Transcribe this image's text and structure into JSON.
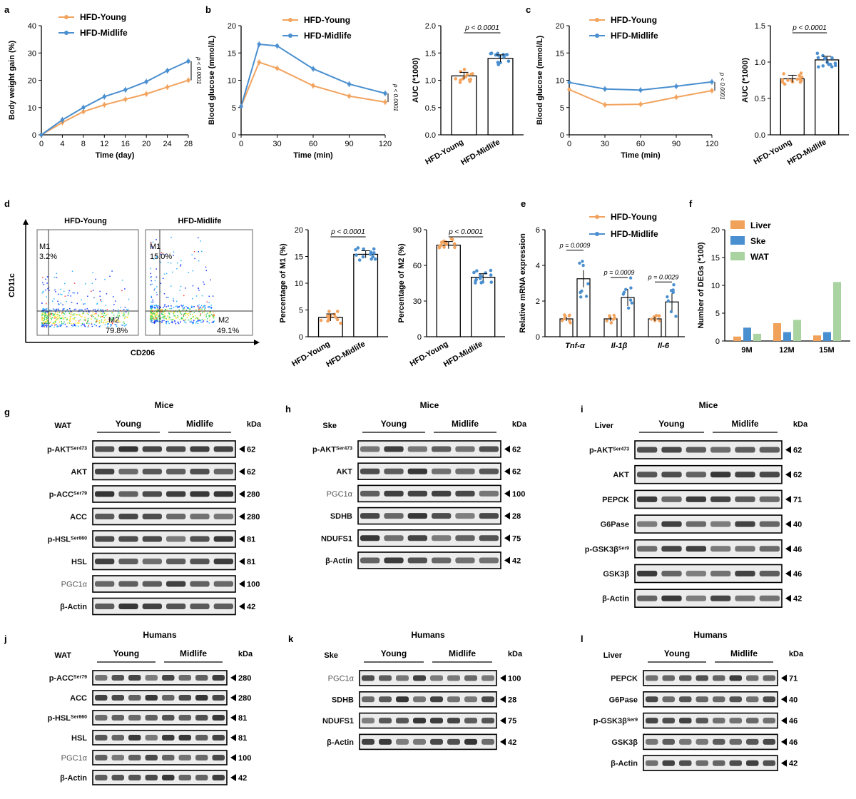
{
  "colors": {
    "young": "#f2a35e",
    "midlife": "#4a8fcf",
    "liver": "#f0a15a",
    "ske": "#4a8fcf",
    "wat": "#a9d4a1",
    "axis": "#000000"
  },
  "panel_letters": {
    "a": "a",
    "b": "b",
    "c": "c",
    "d": "d",
    "e": "e",
    "f": "f",
    "g": "g",
    "h": "h",
    "i": "i",
    "j": "j",
    "k": "k",
    "l": "l"
  },
  "legend": {
    "young": "HFD-Young",
    "midlife": "HFD-Midlife"
  },
  "pvals": {
    "p1": "p < 0.0001",
    "p0009": "p = 0.0009",
    "p0029": "p = 0.0029"
  },
  "panel_d": {
    "xlabel": "CD206",
    "ylabel": "CD11c",
    "young_title": "HFD-Young",
    "midlife_title": "HFD-Midlife",
    "young_m1": "M1",
    "young_m1_pct": "3.2%",
    "young_m2": "M2",
    "young_m2_pct": "79.8%",
    "mid_m1": "M1",
    "mid_m1_pct": "15.0%",
    "mid_m2": "M2",
    "mid_m2_pct": "49.1%"
  },
  "chart_data": [
    {
      "id": "a",
      "type": "line",
      "x": [
        0,
        4,
        8,
        12,
        16,
        20,
        24,
        28
      ],
      "series": [
        {
          "name": "HFD-Young",
          "values": [
            0,
            4.5,
            8.5,
            11,
            13,
            15,
            17.5,
            20
          ]
        },
        {
          "name": "HFD-Midlife",
          "values": [
            0,
            5.5,
            10,
            14,
            16.5,
            19.5,
            23.5,
            27
          ]
        }
      ],
      "xlabel": "Time (day)",
      "ylabel": "Body weight gain (%)",
      "xlim": [
        0,
        28
      ],
      "ylim": [
        0,
        40
      ],
      "xticks": [
        "0",
        "4",
        "8",
        "12",
        "16",
        "20",
        "24",
        "28"
      ],
      "yticks": [
        "0",
        "10",
        "20",
        "30",
        "40"
      ],
      "annotation": "p < 0.0001"
    },
    {
      "id": "b1",
      "type": "line",
      "x": [
        0,
        15,
        30,
        60,
        90,
        120
      ],
      "series": [
        {
          "name": "HFD-Young",
          "values": [
            5.2,
            13.3,
            12.2,
            9.0,
            7.1,
            6.0
          ]
        },
        {
          "name": "HFD-Midlife",
          "values": [
            5.2,
            16.6,
            16.3,
            12.1,
            9.3,
            7.6
          ]
        }
      ],
      "xlabel": "Time (min)",
      "ylabel": "Blood glucose (mmol/L)",
      "xlim": [
        0,
        120
      ],
      "ylim": [
        0,
        20
      ],
      "xticks": [
        "0",
        "30",
        "60",
        "90",
        "120"
      ],
      "yticks": [
        "0",
        "5",
        "10",
        "15",
        "20"
      ],
      "annotation": "p < 0.0001"
    },
    {
      "id": "b2",
      "type": "bar",
      "categories": [
        "HFD-Young",
        "HFD-Midlife"
      ],
      "values": [
        1.08,
        1.4
      ],
      "ylabel": "AUC (*1000)",
      "ylim": [
        0,
        2.0
      ],
      "yticks": [
        "0.0",
        "0.5",
        "1.0",
        "1.5",
        "2.0"
      ],
      "annotation": "p < 0.0001"
    },
    {
      "id": "c1",
      "type": "line",
      "x": [
        0,
        30,
        60,
        90,
        120
      ],
      "series": [
        {
          "name": "HFD-Young",
          "values": [
            8.3,
            5.5,
            5.6,
            6.9,
            8.1
          ]
        },
        {
          "name": "HFD-Midlife",
          "values": [
            9.6,
            8.4,
            8.2,
            8.9,
            9.7
          ]
        }
      ],
      "xlabel": "Time (min)",
      "ylabel": "Blood glucose (mmol/L)",
      "xlim": [
        0,
        120
      ],
      "ylim": [
        0,
        20
      ],
      "xticks": [
        "0",
        "30",
        "60",
        "90",
        "120"
      ],
      "yticks": [
        "0",
        "5",
        "10",
        "15",
        "20"
      ],
      "annotation": "p < 0.0001"
    },
    {
      "id": "c2",
      "type": "bar",
      "categories": [
        "HFD-Young",
        "HFD-Midlife"
      ],
      "values": [
        0.77,
        1.03
      ],
      "ylabel": "AUC (*1000)",
      "ylim": [
        0,
        1.5
      ],
      "yticks": [
        "0.0",
        "0.5",
        "1.0",
        "1.5"
      ],
      "annotation": "p < 0.0001"
    },
    {
      "id": "d1",
      "type": "bar",
      "categories": [
        "HFD-Young",
        "HFD-Midlife"
      ],
      "values": [
        3.6,
        15.4
      ],
      "ylabel": "Percentage of M1 (%)",
      "ylim": [
        0,
        20
      ],
      "yticks": [
        "0",
        "5",
        "10",
        "15",
        "20"
      ],
      "annotation": "p < 0.0001"
    },
    {
      "id": "d2",
      "type": "bar",
      "categories": [
        "HFD-Young",
        "HFD-Midlife"
      ],
      "values": [
        77,
        50
      ],
      "ylabel": "Percentage of M2 (%)",
      "ylim": [
        0,
        90
      ],
      "yticks": [
        "0",
        "30",
        "60",
        "90"
      ],
      "annotation": "p < 0.0001"
    },
    {
      "id": "e",
      "type": "bar",
      "categories": [
        "Tnf-α",
        "Il-1β",
        "Il-6"
      ],
      "series": [
        {
          "name": "HFD-Young",
          "values": [
            1.0,
            1.0,
            1.0
          ]
        },
        {
          "name": "HFD-Midlife",
          "values": [
            3.25,
            2.2,
            1.95
          ]
        }
      ],
      "ylabel": "Relative mRNA expression",
      "ylim": [
        0,
        6
      ],
      "yticks": [
        "0",
        "2",
        "4",
        "6"
      ],
      "annotations": [
        "p = 0.0009",
        "p = 0.0009",
        "p = 0.0029"
      ]
    },
    {
      "id": "f",
      "type": "bar",
      "categories": [
        "9M",
        "12M",
        "15M"
      ],
      "series": [
        {
          "name": "Liver",
          "values": [
            0.8,
            3.2,
            1.0
          ]
        },
        {
          "name": "Ske",
          "values": [
            2.4,
            1.6,
            1.6
          ]
        },
        {
          "name": "WAT",
          "values": [
            1.3,
            3.8,
            10.6
          ]
        }
      ],
      "ylabel": "Number of DEGs (*100)",
      "ylim": [
        0,
        20
      ],
      "yticks": [
        "0",
        "5",
        "10",
        "15",
        "20"
      ]
    }
  ],
  "blots": [
    {
      "id": "g",
      "title": "Mice",
      "tissue": "WAT",
      "g1": "Young",
      "g2": "Midlife",
      "kda": "kDa",
      "rows": [
        [
          "p-AKT",
          "Ser473",
          "62"
        ],
        [
          "AKT",
          "",
          "62"
        ],
        [
          "p-ACC",
          "Ser79",
          "280"
        ],
        [
          "ACC",
          "",
          "280"
        ],
        [
          "p-HSL",
          "Ser660",
          "81"
        ],
        [
          "HSL",
          "",
          "81"
        ],
        [
          "PGC1α",
          "",
          "100"
        ],
        [
          "β-Actin",
          "",
          "42"
        ]
      ]
    },
    {
      "id": "h",
      "title": "Mice",
      "tissue": "Ske",
      "g1": "Young",
      "g2": "Midlife",
      "kda": "kDa",
      "rows": [
        [
          "p-AKT",
          "Ser473",
          "62"
        ],
        [
          "AKT",
          "",
          "62"
        ],
        [
          "PGC1α",
          "",
          "100"
        ],
        [
          "SDHB",
          "",
          "28"
        ],
        [
          "NDUFS1",
          "",
          "75"
        ],
        [
          "β-Actin",
          "",
          "42"
        ]
      ]
    },
    {
      "id": "i",
      "title": "Mice",
      "tissue": "Liver",
      "g1": "Young",
      "g2": "Midlife",
      "kda": "kDa",
      "rows": [
        [
          "p-AKT",
          "Ser473",
          "62"
        ],
        [
          "AKT",
          "",
          "62"
        ],
        [
          "PEPCK",
          "",
          "71"
        ],
        [
          "G6Pase",
          "",
          "40"
        ],
        [
          "p-GSK3β",
          "Ser9",
          "46"
        ],
        [
          "GSK3β",
          "",
          "46"
        ],
        [
          "β-Actin",
          "",
          "42"
        ]
      ]
    },
    {
      "id": "j",
      "title": "Humans",
      "tissue": "WAT",
      "g1": "Young",
      "g2": "Midlife",
      "kda": "kDa",
      "rows": [
        [
          "p-ACC",
          "Ser79",
          "280"
        ],
        [
          "ACC",
          "",
          "280"
        ],
        [
          "p-HSL",
          "Ser660",
          "81"
        ],
        [
          "HSL",
          "",
          "81"
        ],
        [
          "PGC1α",
          "",
          "100"
        ],
        [
          "β-Actin",
          "",
          "42"
        ]
      ]
    },
    {
      "id": "k",
      "title": "Humans",
      "tissue": "Ske",
      "g1": "Young",
      "g2": "Midlife",
      "kda": "kDa",
      "rows": [
        [
          "PGC1α",
          "",
          "100"
        ],
        [
          "SDHB",
          "",
          "28"
        ],
        [
          "NDUFS1",
          "",
          "75"
        ],
        [
          "β-Actin",
          "",
          "42"
        ]
      ]
    },
    {
      "id": "l",
      "title": "Humans",
      "tissue": "Liver",
      "g1": "Young",
      "g2": "Midlife",
      "kda": "kDa",
      "rows": [
        [
          "PEPCK",
          "",
          "71"
        ],
        [
          "G6Pase",
          "",
          "40"
        ],
        [
          "p-GSK3β",
          "Ser9",
          "46"
        ],
        [
          "GSK3β",
          "",
          "46"
        ],
        [
          "β-Actin",
          "",
          "42"
        ]
      ]
    }
  ]
}
